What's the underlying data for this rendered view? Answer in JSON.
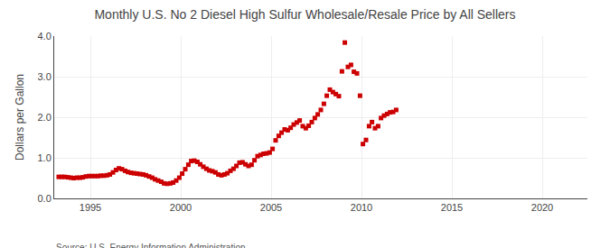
{
  "chart_data": {
    "type": "scatter",
    "title": "Monthly U.S. No 2 Diesel High Sulfur Wholesale/Resale Price by All Sellers",
    "ylabel": "Dollars per Gallon",
    "source": "Source: U.S. Energy Information Administration",
    "color": "#CC0000",
    "marker": "square",
    "grid": true,
    "xlim": [
      1993.0,
      2022.5
    ],
    "ylim": [
      0.0,
      4.0
    ],
    "xticks": [
      1995,
      2000,
      2005,
      2010,
      2015,
      2020
    ],
    "yticks": [
      {
        "value": 0.0,
        "label": "0.0"
      },
      {
        "value": 1.0,
        "label": "1.0"
      },
      {
        "value": 2.0,
        "label": "2.0"
      },
      {
        "value": 3.0,
        "label": "3.0"
      },
      {
        "value": 4.0,
        "label": "4.0"
      }
    ],
    "x": [
      1993.25,
      1993.42,
      1993.58,
      1993.75,
      1993.92,
      1994.08,
      1994.25,
      1994.42,
      1994.58,
      1994.75,
      1994.92,
      1995.08,
      1995.25,
      1995.42,
      1995.58,
      1995.75,
      1995.92,
      1996.08,
      1996.25,
      1996.42,
      1996.58,
      1996.75,
      1996.92,
      1997.08,
      1997.25,
      1997.42,
      1997.58,
      1997.75,
      1997.92,
      1998.08,
      1998.25,
      1998.42,
      1998.58,
      1998.75,
      1998.92,
      1999.08,
      1999.25,
      1999.42,
      1999.58,
      1999.75,
      1999.92,
      2000.08,
      2000.25,
      2000.42,
      2000.58,
      2000.75,
      2000.92,
      2001.08,
      2001.25,
      2001.42,
      2001.58,
      2001.75,
      2001.92,
      2002.08,
      2002.25,
      2002.42,
      2002.58,
      2002.75,
      2002.92,
      2003.08,
      2003.25,
      2003.42,
      2003.58,
      2003.75,
      2003.92,
      2004.08,
      2004.25,
      2004.42,
      2004.58,
      2004.75,
      2004.92,
      2005.08,
      2005.25,
      2005.42,
      2005.58,
      2005.75,
      2005.92,
      2006.08,
      2006.25,
      2006.42,
      2006.58,
      2006.75,
      2006.92,
      2007.08,
      2007.25,
      2007.42,
      2007.58,
      2007.75,
      2007.92,
      2008.08,
      2008.25,
      2008.42,
      2008.58,
      2008.75,
      2008.92,
      2009.08,
      2009.25,
      2009.42,
      2009.58,
      2009.75,
      2009.92,
      2010.08,
      2010.25,
      2010.42,
      2010.58,
      2010.75,
      2010.92,
      2011.08,
      2011.25,
      2011.42,
      2011.58,
      2011.75,
      2011.92
    ],
    "values": [
      0.53,
      0.53,
      0.53,
      0.52,
      0.51,
      0.5,
      0.51,
      0.51,
      0.52,
      0.54,
      0.55,
      0.55,
      0.55,
      0.55,
      0.56,
      0.56,
      0.57,
      0.59,
      0.64,
      0.7,
      0.74,
      0.72,
      0.68,
      0.65,
      0.63,
      0.62,
      0.61,
      0.6,
      0.59,
      0.57,
      0.54,
      0.51,
      0.47,
      0.44,
      0.41,
      0.37,
      0.36,
      0.37,
      0.39,
      0.44,
      0.51,
      0.61,
      0.72,
      0.83,
      0.92,
      0.93,
      0.9,
      0.84,
      0.78,
      0.73,
      0.69,
      0.67,
      0.64,
      0.59,
      0.57,
      0.59,
      0.62,
      0.68,
      0.73,
      0.8,
      0.88,
      0.89,
      0.84,
      0.8,
      0.83,
      0.94,
      1.04,
      1.07,
      1.1,
      1.11,
      1.13,
      1.22,
      1.43,
      1.54,
      1.62,
      1.7,
      1.68,
      1.74,
      1.82,
      1.87,
      1.92,
      1.78,
      1.73,
      1.79,
      1.88,
      1.98,
      2.07,
      2.18,
      2.33,
      2.53,
      2.68,
      2.62,
      2.57,
      2.52,
      3.13,
      3.84,
      3.24,
      3.29,
      3.12,
      3.08,
      2.53,
      1.34,
      1.44,
      1.78,
      1.88,
      1.73,
      1.78,
      1.98,
      2.04,
      2.08,
      2.12,
      2.13,
      2.18
    ]
  }
}
